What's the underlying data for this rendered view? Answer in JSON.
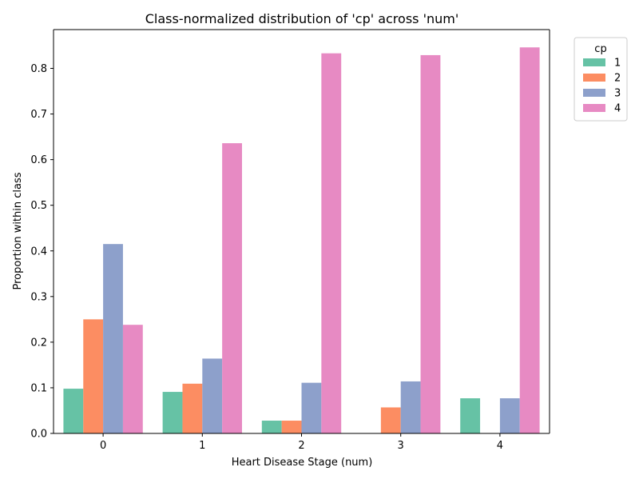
{
  "chart_data": {
    "type": "bar",
    "title": "Class-normalized distribution of 'cp' across 'num'",
    "xlabel": "Heart Disease Stage (num)",
    "ylabel": "Proportion within class",
    "categories": [
      "0",
      "1",
      "2",
      "3",
      "4"
    ],
    "ylim": [
      0,
      0.885
    ],
    "yticks": [
      "0.0",
      "0.1",
      "0.2",
      "0.3",
      "0.4",
      "0.5",
      "0.6",
      "0.7",
      "0.8"
    ],
    "legend": {
      "title": "cp",
      "placement": "outside top-right"
    },
    "grid": false,
    "series": [
      {
        "name": "1",
        "color": "#66c2a5",
        "values": [
          0.098,
          0.091,
          0.028,
          0.0,
          0.077
        ]
      },
      {
        "name": "2",
        "color": "#fc8d62",
        "values": [
          0.25,
          0.109,
          0.028,
          0.057,
          0.0
        ]
      },
      {
        "name": "3",
        "color": "#8da0cb",
        "values": [
          0.415,
          0.164,
          0.111,
          0.114,
          0.077
        ]
      },
      {
        "name": "4",
        "color": "#e78ac3",
        "values": [
          0.238,
          0.636,
          0.833,
          0.829,
          0.846
        ]
      }
    ]
  }
}
